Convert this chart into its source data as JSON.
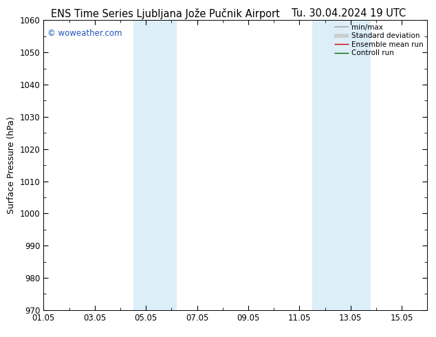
{
  "title_left": "ENS Time Series Ljubljana Jože Pučnik Airport",
  "title_right": "Tu. 30.04.2024 19 UTC",
  "ylabel": "Surface Pressure (hPa)",
  "ylim": [
    970,
    1060
  ],
  "yticks": [
    970,
    980,
    990,
    1000,
    1010,
    1020,
    1030,
    1040,
    1050,
    1060
  ],
  "xtick_labels": [
    "01.05",
    "03.05",
    "05.05",
    "07.05",
    "09.05",
    "11.05",
    "13.05",
    "15.05"
  ],
  "xtick_positions": [
    0,
    2,
    4,
    6,
    8,
    10,
    12,
    14
  ],
  "xlim": [
    0,
    15
  ],
  "shaded_bands": [
    {
      "x_start": 3.5,
      "x_end": 5.2,
      "color": "#dceef8"
    },
    {
      "x_start": 10.5,
      "x_end": 12.8,
      "color": "#dceef8"
    }
  ],
  "legend_items": [
    {
      "label": "min/max",
      "color": "#aaaaaa",
      "lw": 1.2
    },
    {
      "label": "Standard deviation",
      "color": "#cccccc",
      "lw": 4
    },
    {
      "label": "Ensemble mean run",
      "color": "#cc0000",
      "lw": 1.0
    },
    {
      "label": "Controll run",
      "color": "#006600",
      "lw": 1.0
    }
  ],
  "watermark": "© woweather.com",
  "watermark_color": "#2255bb",
  "background_color": "#ffffff",
  "plot_bg_color": "#ffffff",
  "title_fontsize": 10.5,
  "ylabel_fontsize": 9,
  "tick_fontsize": 8.5,
  "legend_fontsize": 7.5
}
